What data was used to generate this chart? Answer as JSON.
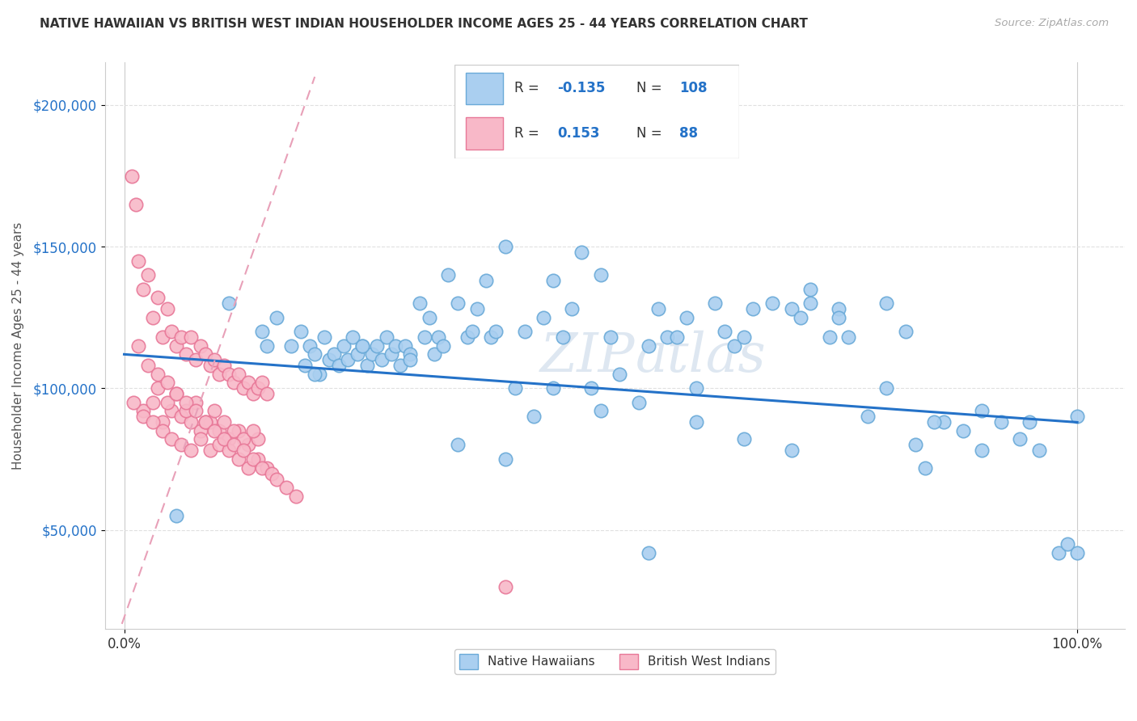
{
  "title": "NATIVE HAWAIIAN VS BRITISH WEST INDIAN HOUSEHOLDER INCOME AGES 25 - 44 YEARS CORRELATION CHART",
  "source": "Source: ZipAtlas.com",
  "ylabel": "Householder Income Ages 25 - 44 years",
  "xlabel": "",
  "xlim": [
    -2,
    105
  ],
  "ylim": [
    15000,
    215000
  ],
  "yticks": [
    50000,
    100000,
    150000,
    200000
  ],
  "ytick_labels": [
    "$50,000",
    "$100,000",
    "$150,000",
    "$200,000"
  ],
  "xtick_labels": [
    "0.0%",
    "100.0%"
  ],
  "native_hawaiian_color": "#aacff0",
  "british_wi_color": "#f8b8c8",
  "native_hawaiian_edge": "#6aaad8",
  "british_wi_edge": "#e87898",
  "trend_blue": "#2472c8",
  "trend_pink_color": "#e8a0b8",
  "R_nh": -0.135,
  "N_nh": 108,
  "R_bwi": 0.153,
  "N_bwi": 88,
  "legend_label_nh": "Native Hawaiians",
  "legend_label_bwi": "British West Indians",
  "watermark": "ZIPAtlas",
  "background_color": "#ffffff",
  "grid_color": "#e0e0e0",
  "native_hawaiian_x": [
    5.5,
    11.0,
    14.5,
    16.0,
    17.5,
    18.5,
    19.0,
    19.5,
    20.0,
    20.5,
    21.0,
    21.5,
    22.0,
    22.5,
    23.0,
    23.5,
    24.0,
    24.5,
    25.0,
    25.5,
    26.0,
    26.5,
    27.0,
    27.5,
    28.0,
    28.5,
    29.0,
    29.5,
    30.0,
    31.0,
    31.5,
    32.0,
    32.5,
    33.0,
    33.5,
    34.0,
    35.0,
    36.0,
    36.5,
    37.0,
    38.0,
    38.5,
    39.0,
    40.0,
    41.0,
    42.0,
    43.0,
    44.0,
    45.0,
    46.0,
    47.0,
    48.0,
    49.0,
    50.0,
    51.0,
    52.0,
    54.0,
    55.0,
    56.0,
    57.0,
    58.0,
    59.0,
    60.0,
    62.0,
    63.0,
    64.0,
    65.0,
    66.0,
    68.0,
    70.0,
    71.0,
    72.0,
    74.0,
    75.0,
    76.0,
    78.0,
    80.0,
    82.0,
    83.0,
    84.0,
    86.0,
    88.0,
    90.0,
    92.0,
    94.0,
    96.0,
    98.0,
    99.0,
    100.0,
    72.0,
    75.0,
    80.0,
    85.0,
    90.0,
    95.0,
    100.0,
    65.0,
    70.0,
    55.0,
    60.0,
    50.0,
    45.0,
    40.0,
    35.0,
    30.0,
    25.0,
    20.0,
    15.0
  ],
  "native_hawaiian_y": [
    55000,
    130000,
    120000,
    125000,
    115000,
    120000,
    108000,
    115000,
    112000,
    105000,
    118000,
    110000,
    112000,
    108000,
    115000,
    110000,
    118000,
    112000,
    115000,
    108000,
    112000,
    115000,
    110000,
    118000,
    112000,
    115000,
    108000,
    115000,
    112000,
    130000,
    118000,
    125000,
    112000,
    118000,
    115000,
    140000,
    130000,
    118000,
    120000,
    128000,
    138000,
    118000,
    120000,
    150000,
    100000,
    120000,
    90000,
    125000,
    138000,
    118000,
    128000,
    148000,
    100000,
    140000,
    118000,
    105000,
    95000,
    115000,
    128000,
    118000,
    118000,
    125000,
    100000,
    130000,
    120000,
    115000,
    118000,
    128000,
    130000,
    128000,
    125000,
    135000,
    118000,
    128000,
    118000,
    90000,
    130000,
    120000,
    80000,
    72000,
    88000,
    85000,
    78000,
    88000,
    82000,
    78000,
    42000,
    45000,
    42000,
    130000,
    125000,
    100000,
    88000,
    92000,
    88000,
    90000,
    82000,
    78000,
    42000,
    88000,
    92000,
    100000,
    75000,
    80000,
    110000,
    115000,
    105000,
    115000
  ],
  "british_wi_x": [
    0.8,
    1.2,
    1.5,
    2.0,
    2.5,
    3.0,
    3.5,
    4.0,
    4.5,
    5.0,
    5.5,
    6.0,
    6.5,
    7.0,
    7.5,
    8.0,
    8.5,
    9.0,
    9.5,
    10.0,
    10.5,
    11.0,
    11.5,
    12.0,
    12.5,
    13.0,
    13.5,
    14.0,
    14.5,
    15.0,
    2.0,
    3.0,
    4.0,
    5.0,
    6.0,
    7.0,
    8.0,
    9.0,
    10.0,
    11.0,
    12.0,
    13.0,
    14.0,
    3.5,
    4.5,
    5.5,
    6.5,
    7.5,
    8.5,
    9.5,
    10.5,
    11.5,
    12.5,
    13.5,
    1.0,
    2.0,
    3.0,
    4.0,
    5.0,
    6.0,
    7.0,
    8.0,
    9.0,
    10.0,
    11.0,
    12.0,
    13.0,
    14.0,
    15.0,
    1.5,
    2.5,
    3.5,
    4.5,
    5.5,
    6.5,
    7.5,
    8.5,
    9.5,
    10.5,
    11.5,
    12.5,
    13.5,
    14.5,
    15.5,
    16.0,
    17.0,
    18.0,
    40.0
  ],
  "british_wi_y": [
    175000,
    165000,
    145000,
    135000,
    140000,
    125000,
    132000,
    118000,
    128000,
    120000,
    115000,
    118000,
    112000,
    118000,
    110000,
    115000,
    112000,
    108000,
    110000,
    105000,
    108000,
    105000,
    102000,
    105000,
    100000,
    102000,
    98000,
    100000,
    102000,
    98000,
    92000,
    95000,
    88000,
    92000,
    90000,
    88000,
    85000,
    88000,
    85000,
    82000,
    85000,
    80000,
    82000,
    100000,
    95000,
    98000,
    92000,
    95000,
    88000,
    92000,
    88000,
    85000,
    82000,
    85000,
    95000,
    90000,
    88000,
    85000,
    82000,
    80000,
    78000,
    82000,
    78000,
    80000,
    78000,
    75000,
    72000,
    75000,
    72000,
    115000,
    108000,
    105000,
    102000,
    98000,
    95000,
    92000,
    88000,
    85000,
    82000,
    80000,
    78000,
    75000,
    72000,
    70000,
    68000,
    65000,
    62000,
    30000
  ]
}
